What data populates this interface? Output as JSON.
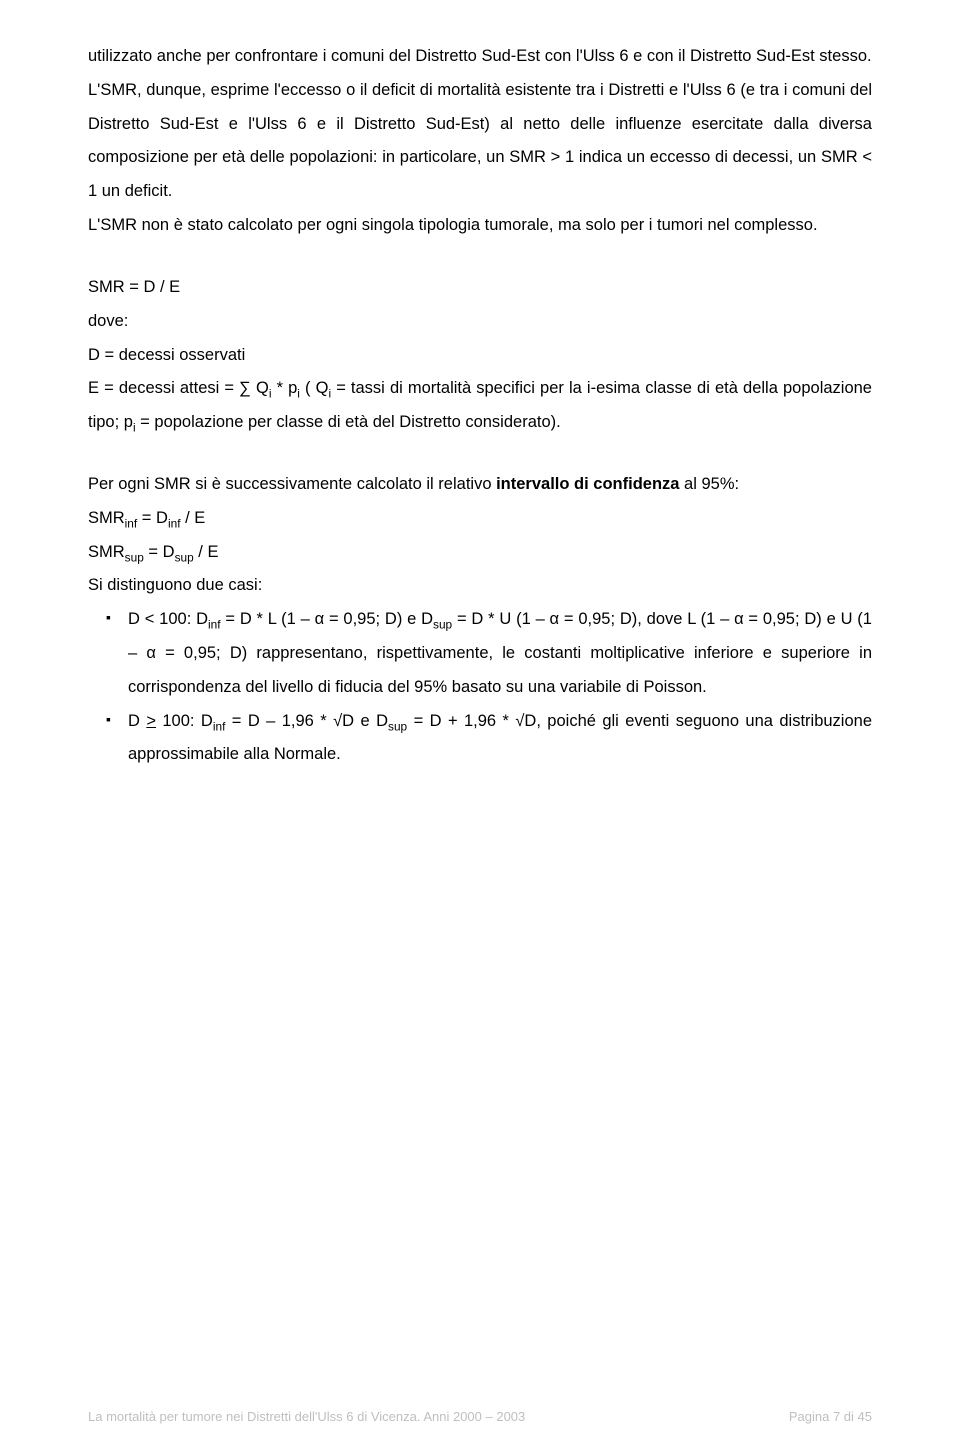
{
  "p1": "utilizzato anche per confrontare i comuni del Distretto Sud-Est con l'Ulss 6 e con il Distretto Sud-Est stesso.",
  "p2": "L'SMR, dunque, esprime l'eccesso o il deficit di mortalità esistente tra i Distretti e l'Ulss 6 (e tra i comuni del Distretto Sud-Est e l'Ulss 6 e il Distretto Sud-Est) al netto delle influenze esercitate dalla diversa composizione per età delle popolazioni: in particolare, un SMR > 1 indica un eccesso di decessi, un SMR < 1 un deficit.",
  "p3": "L'SMR non è stato calcolato per ogni singola tipologia tumorale, ma solo per i tumori nel complesso.",
  "smr_eq": "SMR = D / E",
  "dove": "dove:",
  "d_def": "D = decessi osservati",
  "e_def_pre": "E = decessi attesi = ∑ Q",
  "e_def_mid1": " * p",
  "e_def_mid2": " ( Q",
  "e_def_mid3": " = tassi di mortalità specifici per la i-esima classe di età della popolazione tipo; p",
  "e_def_post": " = popolazione per classe di età del Distretto considerato).",
  "ci_intro_1": "Per ogni SMR si è successivamente calcolato il relativo ",
  "ci_intro_bold": "intervallo di confidenza",
  "ci_intro_2": " al 95%:",
  "smr_inf_a": "SMR",
  "smr_inf_b": " = D",
  "smr_inf_c": " / E",
  "smr_sup_a": "SMR",
  "smr_sup_b": " = D",
  "smr_sup_c": " / E",
  "cases": "Si distinguono due casi:",
  "li1_a": "D < 100: D",
  "li1_b": " = D * L (1 – α = 0,95; D) e D",
  "li1_c": " = D * U (1 – α = 0,95; D), dove L (1 – α = 0,95; D) e U (1 – α = 0,95; D) rappresentano, rispettivamente, le costanti moltiplicative inferiore e superiore in corrispondenza del livello di fiducia del 95% basato su una variabile di Poisson.",
  "li2_a": "D ",
  "li2_ge": ">",
  "li2_b": " 100: D",
  "li2_c": " = D – 1,96 * √D e D",
  "li2_d": " = D + 1,96 * √D, poiché gli eventi seguono una distribuzione approssimabile alla Normale.",
  "sub_i": "i",
  "sub_inf": "inf",
  "sub_sup": "sup",
  "footer_left": "La mortalità per tumore nei Distretti dell'Ulss 6 di Vicenza. Anni 2000 – 2003",
  "footer_right": "Pagina 7 di 45"
}
